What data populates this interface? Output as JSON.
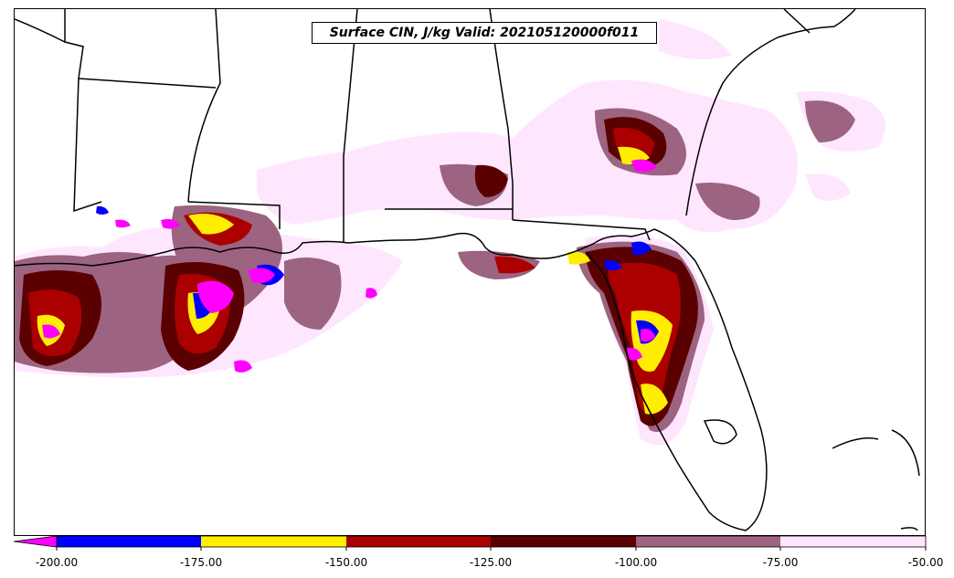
{
  "title": "Surface CIN, J/kg Valid: 202105120000f011",
  "colorbar": {
    "ticks": [
      "-200.00",
      "-175.00",
      "-150.00",
      "-125.00",
      "-100.00",
      "-75.00",
      "-50.00"
    ],
    "extend": "min",
    "colors": [
      "#ff00ff",
      "#0000ff",
      "#ffee00",
      "#aa0000",
      "#5a0000",
      "#9c6480",
      "#ffe6ff"
    ]
  },
  "map": {
    "region": "US Gulf Coast and Florida",
    "colors": {
      "below_-200": "#ff00ff",
      "-200_to_-175": "#0000ff",
      "-175_to_-150": "#ffee00",
      "-150_to_-125": "#aa0000",
      "-125_to_-100": "#5a0000",
      "-100_to_-75": "#9c6480",
      "-75_to_-50": "#ffe6ff",
      "land_and_water": "#ffffff",
      "borders": "#000000"
    }
  }
}
